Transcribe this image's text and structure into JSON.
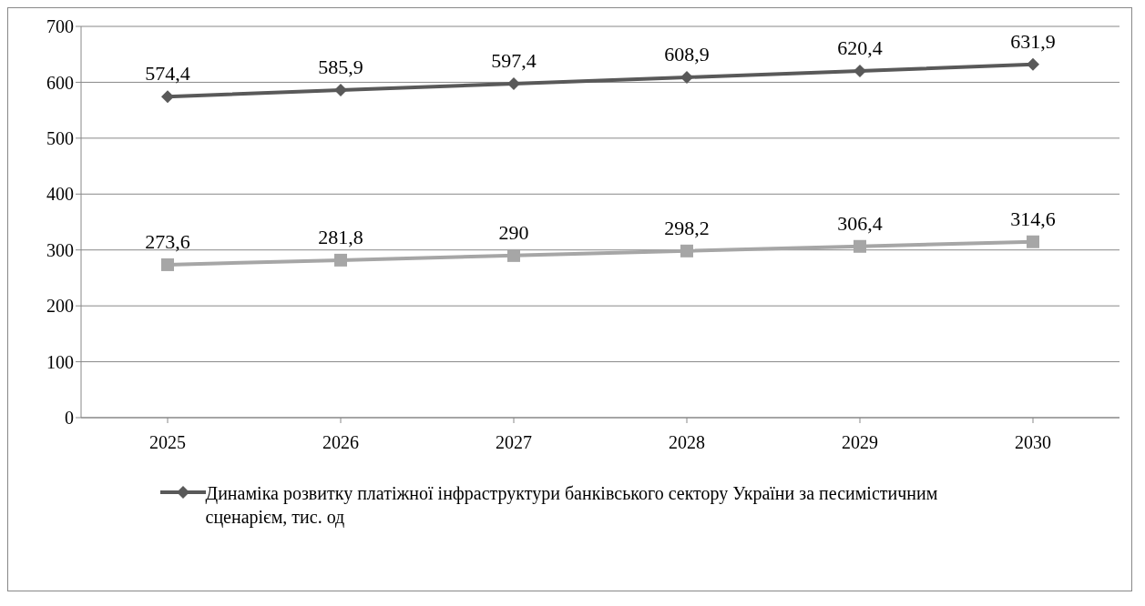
{
  "chart_data": {
    "type": "line",
    "categories": [
      "2025",
      "2026",
      "2027",
      "2028",
      "2029",
      "2030"
    ],
    "series": [
      {
        "name": "Динаміка розвитку платіжної інфраструктури банківського сектору України за песимістичним сценарієм, тис. од",
        "color": "#595959",
        "marker": "diamond",
        "values": [
          574.4,
          585.9,
          597.4,
          608.9,
          620.4,
          631.9
        ],
        "value_labels": [
          "574,4",
          "585,9",
          "597,4",
          "608,9",
          "620,4",
          "631,9"
        ]
      },
      {
        "color": "#a6a6a6",
        "marker": "square",
        "values": [
          273.6,
          281.8,
          290,
          298.2,
          306.4,
          314.6
        ],
        "value_labels": [
          "273,6",
          "281,8",
          "290",
          "298,2",
          "306,4",
          "314,6"
        ]
      }
    ],
    "ylim": [
      0,
      700
    ],
    "yticks": [
      0,
      100,
      200,
      300,
      400,
      500,
      600,
      700
    ],
    "grid": "y",
    "legend": "bottom",
    "line_style": "solid"
  }
}
